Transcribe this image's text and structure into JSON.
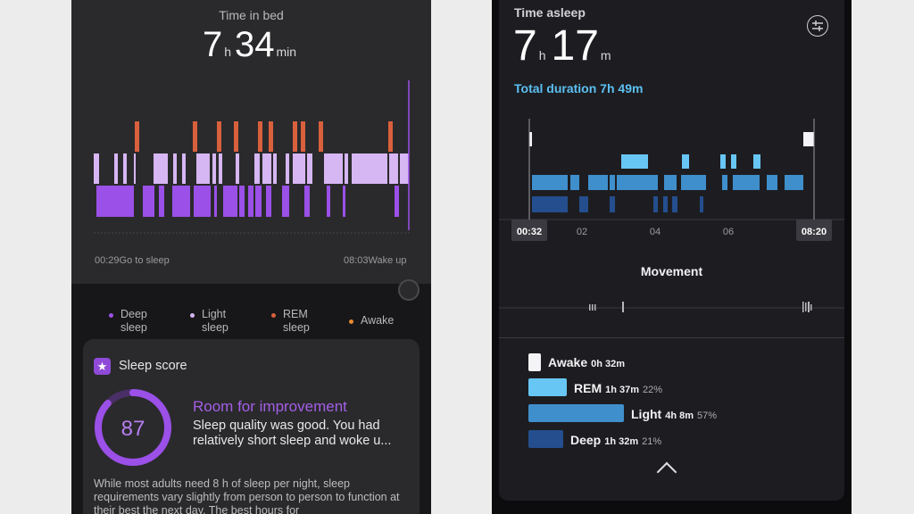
{
  "left": {
    "title": "Time in bed",
    "duration": {
      "hours": "7",
      "h_unit": "h",
      "minutes": "34",
      "m_unit": "min"
    },
    "start_time": "00:29",
    "start_label": "Go to sleep",
    "end_time": "08:03",
    "end_label": "Wake up",
    "legend": [
      {
        "line1": "Deep",
        "line2": "sleep",
        "color": "#9b50e8"
      },
      {
        "line1": "Light",
        "line2": "sleep",
        "color": "#d6b6f3"
      },
      {
        "line1": "REM",
        "line2": "sleep",
        "color": "#d9603c"
      },
      {
        "line1": "Awake",
        "line2": "",
        "color": "#e88a2e"
      }
    ],
    "card": {
      "icon": "star-icon",
      "title": "Sleep score",
      "score": "87",
      "score_fraction": 0.87,
      "heading": "Room for improvement",
      "description": "Sleep quality was good. You had relatively short sleep and woke u...",
      "footer": "While most adults need 8 h of sleep per night, sleep requirements vary slightly from person to person to function at their best the next day. The best hours for"
    },
    "colors": {
      "deep": "#9b50e8",
      "light": "#d6b6f3",
      "rem": "#d9603c",
      "awake": "#e88a2e"
    }
  },
  "right": {
    "title": "Time asleep",
    "duration": {
      "hours": "7",
      "h_unit": "h",
      "minutes": "17",
      "m_unit": "m"
    },
    "total": "Total duration 7h 49m",
    "axis": {
      "start": "00:32",
      "ticks": [
        "02",
        "04",
        "06"
      ],
      "end": "08:20"
    },
    "movement_title": "Movement",
    "legend": [
      {
        "label": "Awake",
        "duration": "0h 32m",
        "percent": "",
        "color": "#f4f4f6"
      },
      {
        "label": "REM",
        "duration": "1h 37m",
        "percent": "22%",
        "color": "#68c6f4"
      },
      {
        "label": "Light",
        "duration": "4h 8m",
        "percent": "57%",
        "color": "#3f8fcc"
      },
      {
        "label": "Deep",
        "duration": "1h 32m",
        "percent": "21%",
        "color": "#244e8e"
      }
    ]
  }
}
